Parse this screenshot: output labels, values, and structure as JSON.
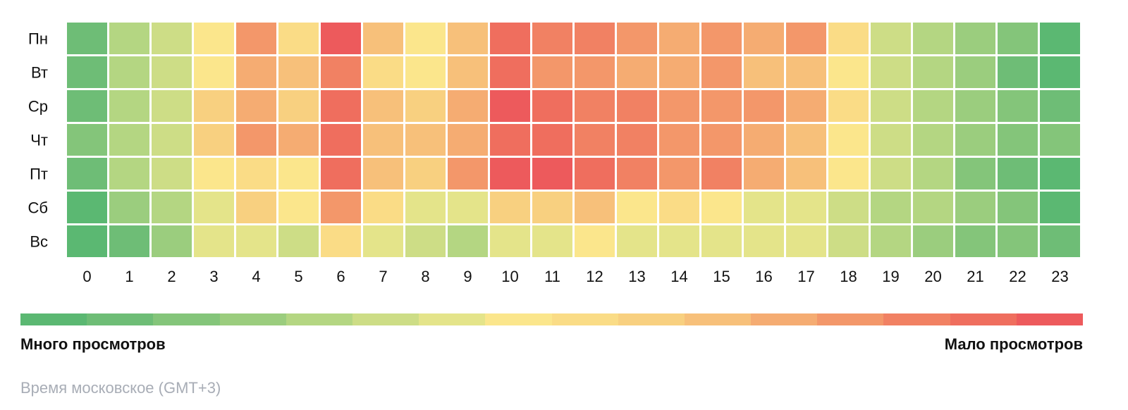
{
  "chart_data": {
    "type": "heatmap",
    "title": "",
    "xlabel": "",
    "ylabel": "",
    "x": [
      "0",
      "1",
      "2",
      "3",
      "4",
      "5",
      "6",
      "7",
      "8",
      "9",
      "10",
      "11",
      "12",
      "13",
      "14",
      "15",
      "16",
      "17",
      "18",
      "19",
      "20",
      "21",
      "22",
      "23"
    ],
    "y": [
      "Пн",
      "Вт",
      "Ср",
      "Чт",
      "Пт",
      "Сб",
      "Вс"
    ],
    "value_scale": "0 = много просмотров (зелёный), 15 = мало просмотров (красный)",
    "values": [
      [
        1,
        4,
        5,
        7,
        12,
        8,
        15,
        10,
        7,
        10,
        14,
        13,
        13,
        12,
        11,
        12,
        11,
        12,
        8,
        5,
        4,
        3,
        2,
        0
      ],
      [
        1,
        4,
        5,
        7,
        11,
        10,
        13,
        8,
        7,
        10,
        14,
        12,
        12,
        11,
        11,
        12,
        10,
        10,
        7,
        5,
        4,
        3,
        1,
        0
      ],
      [
        1,
        4,
        5,
        9,
        11,
        9,
        14,
        10,
        9,
        11,
        15,
        14,
        13,
        13,
        12,
        12,
        12,
        11,
        8,
        5,
        4,
        3,
        2,
        1
      ],
      [
        2,
        4,
        5,
        9,
        12,
        11,
        14,
        10,
        10,
        11,
        14,
        14,
        13,
        13,
        12,
        12,
        11,
        10,
        7,
        5,
        4,
        3,
        2,
        2
      ],
      [
        1,
        4,
        5,
        7,
        8,
        7,
        14,
        10,
        9,
        12,
        15,
        15,
        14,
        13,
        12,
        13,
        11,
        10,
        7,
        5,
        4,
        2,
        1,
        0
      ],
      [
        0,
        3,
        4,
        6,
        9,
        7,
        12,
        8,
        6,
        6,
        9,
        9,
        10,
        7,
        8,
        7,
        6,
        6,
        5,
        4,
        4,
        3,
        2,
        0
      ],
      [
        0,
        1,
        3,
        6,
        6,
        5,
        8,
        6,
        5,
        4,
        6,
        6,
        7,
        6,
        6,
        6,
        6,
        6,
        5,
        4,
        3,
        2,
        2,
        1
      ]
    ],
    "colorscale": [
      "#5bb872",
      "#6ebd76",
      "#84c57a",
      "#9bcd7e",
      "#b4d682",
      "#cddd86",
      "#e4e48a",
      "#fbe68c",
      "#fadc86",
      "#f8d080",
      "#f7c07a",
      "#f5ac72",
      "#f3976a",
      "#f18163",
      "#ef6e5e",
      "#ed5a5c"
    ],
    "legend": {
      "placement": "bottom",
      "left_label": "Много просмотров",
      "right_label": "Мало просмотров"
    },
    "footnote": "Время московское (GMT+3)"
  }
}
